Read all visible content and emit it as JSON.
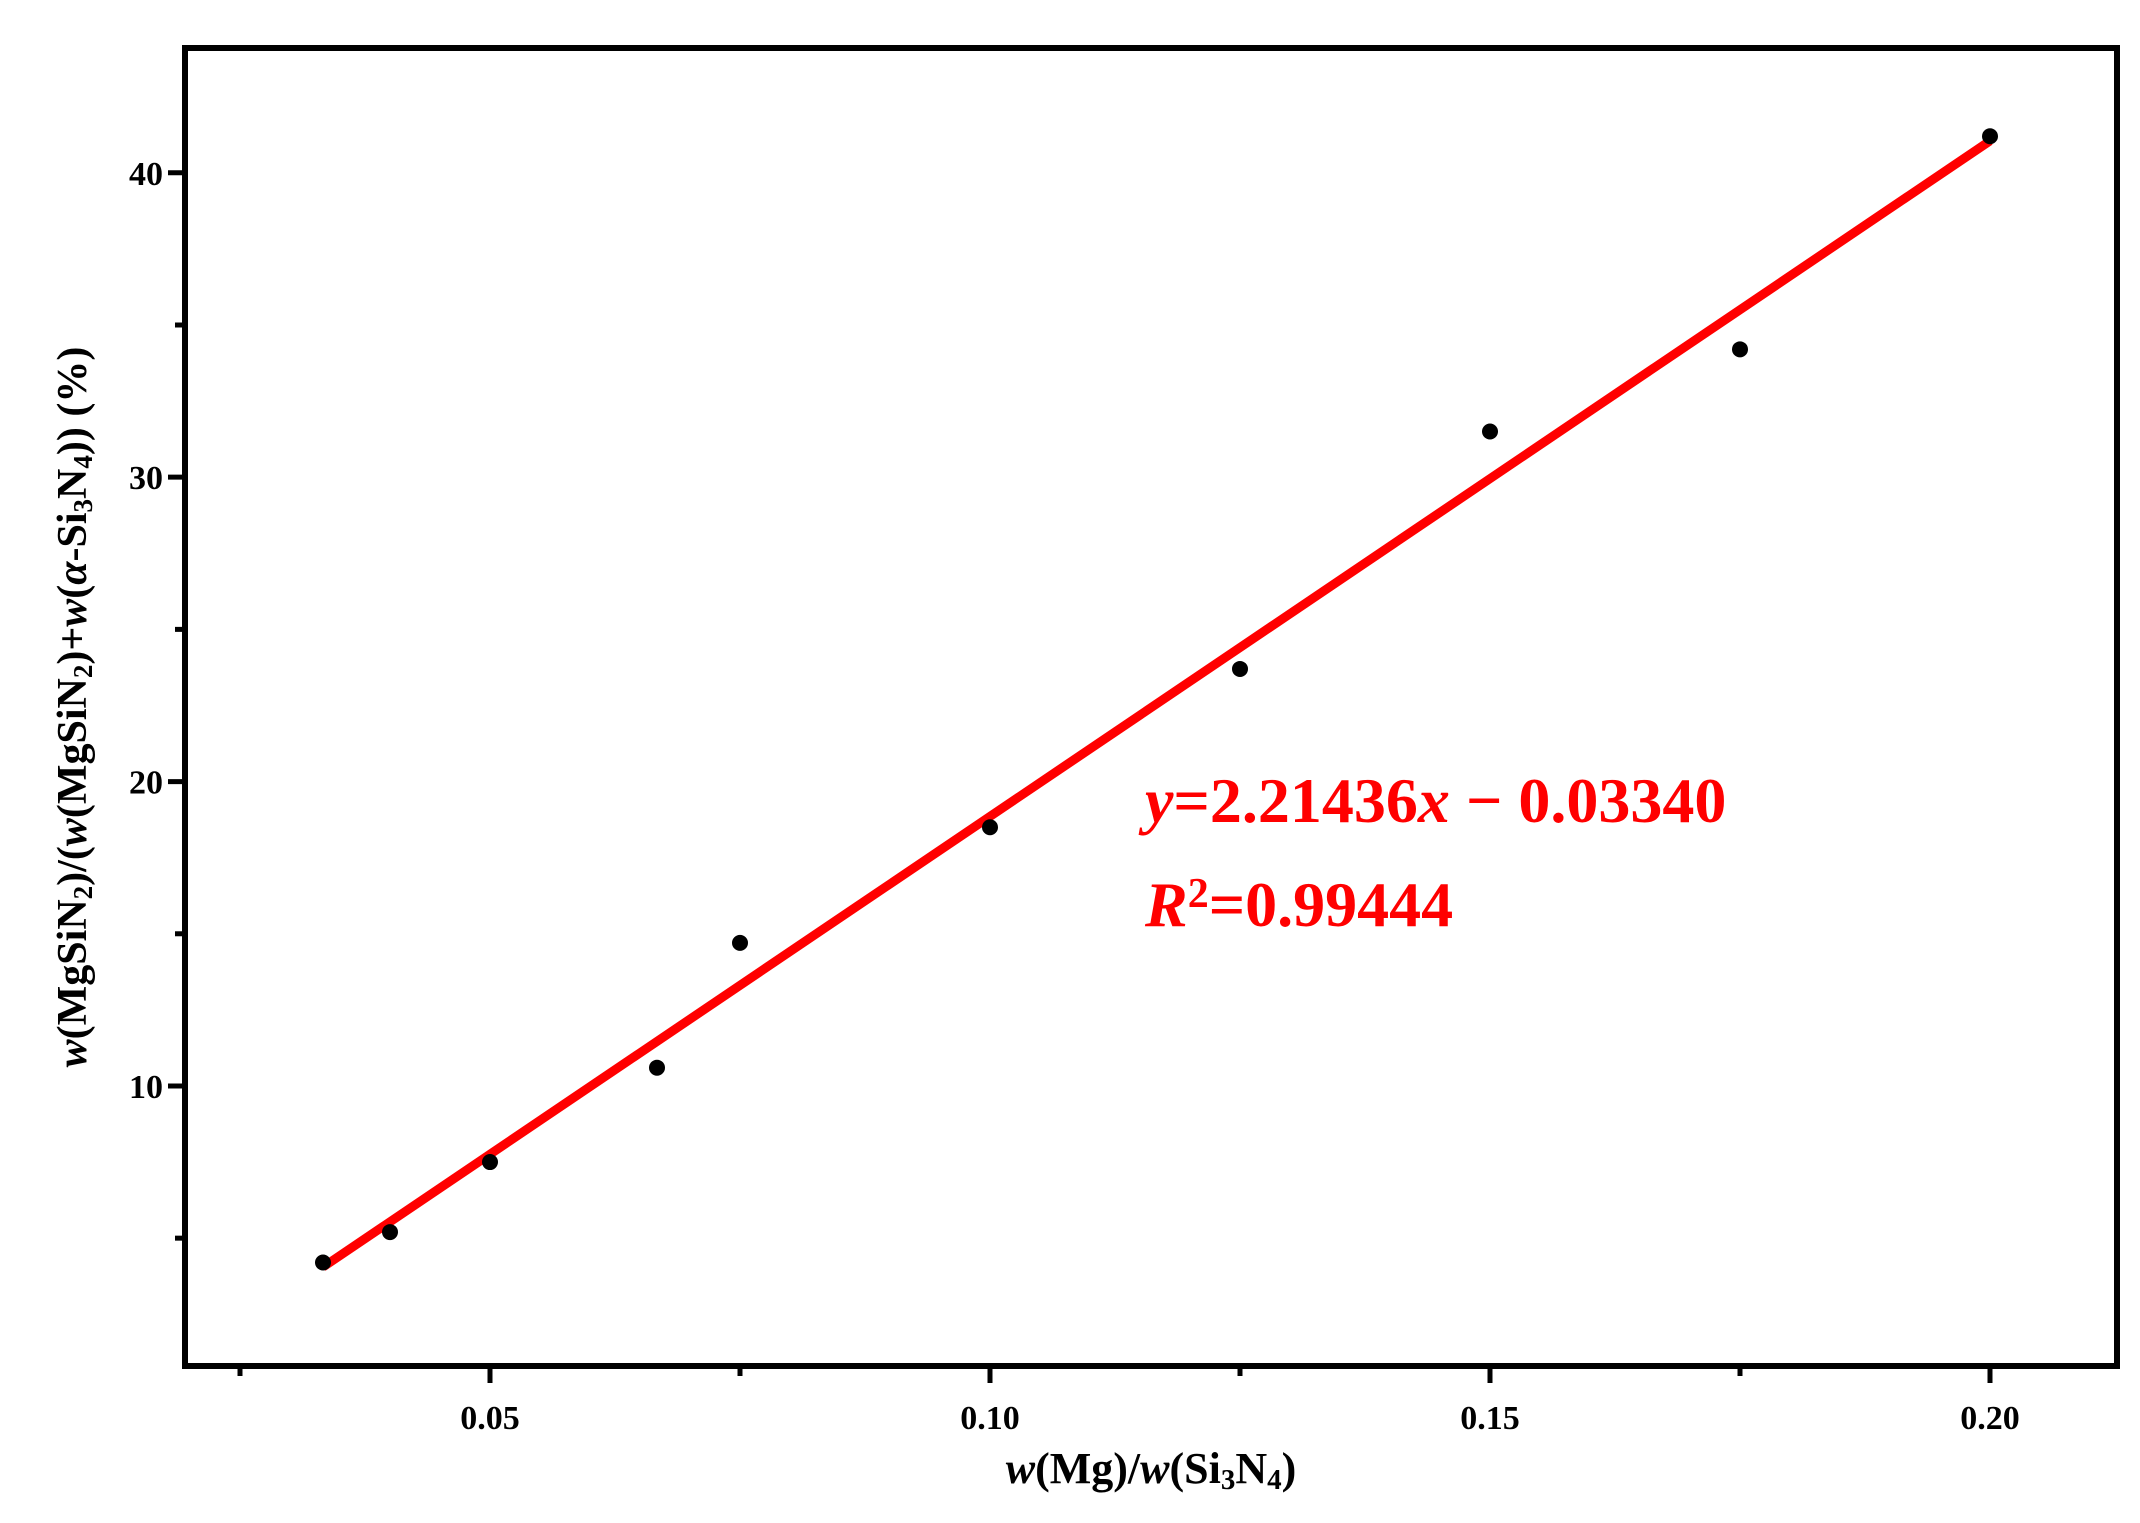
{
  "chart_data": {
    "type": "scatter",
    "xlabel": {
      "parts": [
        {
          "text": "w",
          "style": "italic"
        },
        {
          "text": "(Mg)/",
          "style": "normal"
        },
        {
          "text": "w",
          "style": "italic"
        },
        {
          "text": "(Si",
          "style": "normal"
        },
        {
          "text": "3",
          "style": "sub"
        },
        {
          "text": "N",
          "style": "normal"
        },
        {
          "text": "4",
          "style": "sub"
        },
        {
          "text": ")",
          "style": "normal"
        }
      ]
    },
    "ylabel": {
      "parts": [
        {
          "text": "w",
          "style": "italic"
        },
        {
          "text": "(MgSiN",
          "style": "normal"
        },
        {
          "text": "2",
          "style": "sub"
        },
        {
          "text": ")/(",
          "style": "normal"
        },
        {
          "text": "w",
          "style": "italic"
        },
        {
          "text": "(MgSiN",
          "style": "normal"
        },
        {
          "text": "2",
          "style": "sub"
        },
        {
          "text": ")+",
          "style": "normal"
        },
        {
          "text": "w",
          "style": "italic"
        },
        {
          "text": "(",
          "style": "normal"
        },
        {
          "text": "α",
          "style": "italic"
        },
        {
          "text": "-Si",
          "style": "normal"
        },
        {
          "text": "3",
          "style": "sub"
        },
        {
          "text": "N",
          "style": "normal"
        },
        {
          "text": "4",
          "style": "sub"
        },
        {
          "text": ")) (%)",
          "style": "normal"
        }
      ]
    },
    "xlim": [
      0.0195,
      0.2127
    ],
    "ylim": [
      0.8,
      44.1
    ],
    "xticks": [
      0.05,
      0.1,
      0.15,
      0.2
    ],
    "xtick_labels": [
      "0.05",
      "0.10",
      "0.15",
      "0.20"
    ],
    "x_minor_ticks": [
      0.025,
      0.075,
      0.125,
      0.175
    ],
    "yticks": [
      10,
      20,
      30,
      40
    ],
    "ytick_labels": [
      "10",
      "20",
      "30",
      "40"
    ],
    "y_minor_ticks": [
      5,
      15,
      25,
      35
    ],
    "grid": false,
    "legend": "none",
    "series": [
      {
        "type": "scatter",
        "color": "#000000",
        "x": [
          0.0333,
          0.04,
          0.05,
          0.0667,
          0.075,
          0.1,
          0.125,
          0.15,
          0.175,
          0.2
        ],
        "y": [
          4.2,
          5.2,
          7.5,
          10.6,
          14.7,
          18.5,
          23.7,
          31.5,
          34.2,
          41.2
        ]
      },
      {
        "type": "line",
        "color": "#ff0000",
        "x": [
          0.0333,
          0.2
        ],
        "y": [
          4.05,
          41.05
        ]
      }
    ],
    "annotations": [
      {
        "color": "#ff0000",
        "parts": [
          {
            "text": "y",
            "style": "italic"
          },
          {
            "text": "=2.21436",
            "style": "normal"
          },
          {
            "text": "x",
            "style": "italic"
          },
          {
            "text": " − 0.03340",
            "style": "normal"
          }
        ]
      },
      {
        "color": "#ff0000",
        "parts": [
          {
            "text": "R",
            "style": "italic"
          },
          {
            "text": "2",
            "style": "sup"
          },
          {
            "text": "=0.99444",
            "style": "normal"
          }
        ]
      }
    ]
  }
}
